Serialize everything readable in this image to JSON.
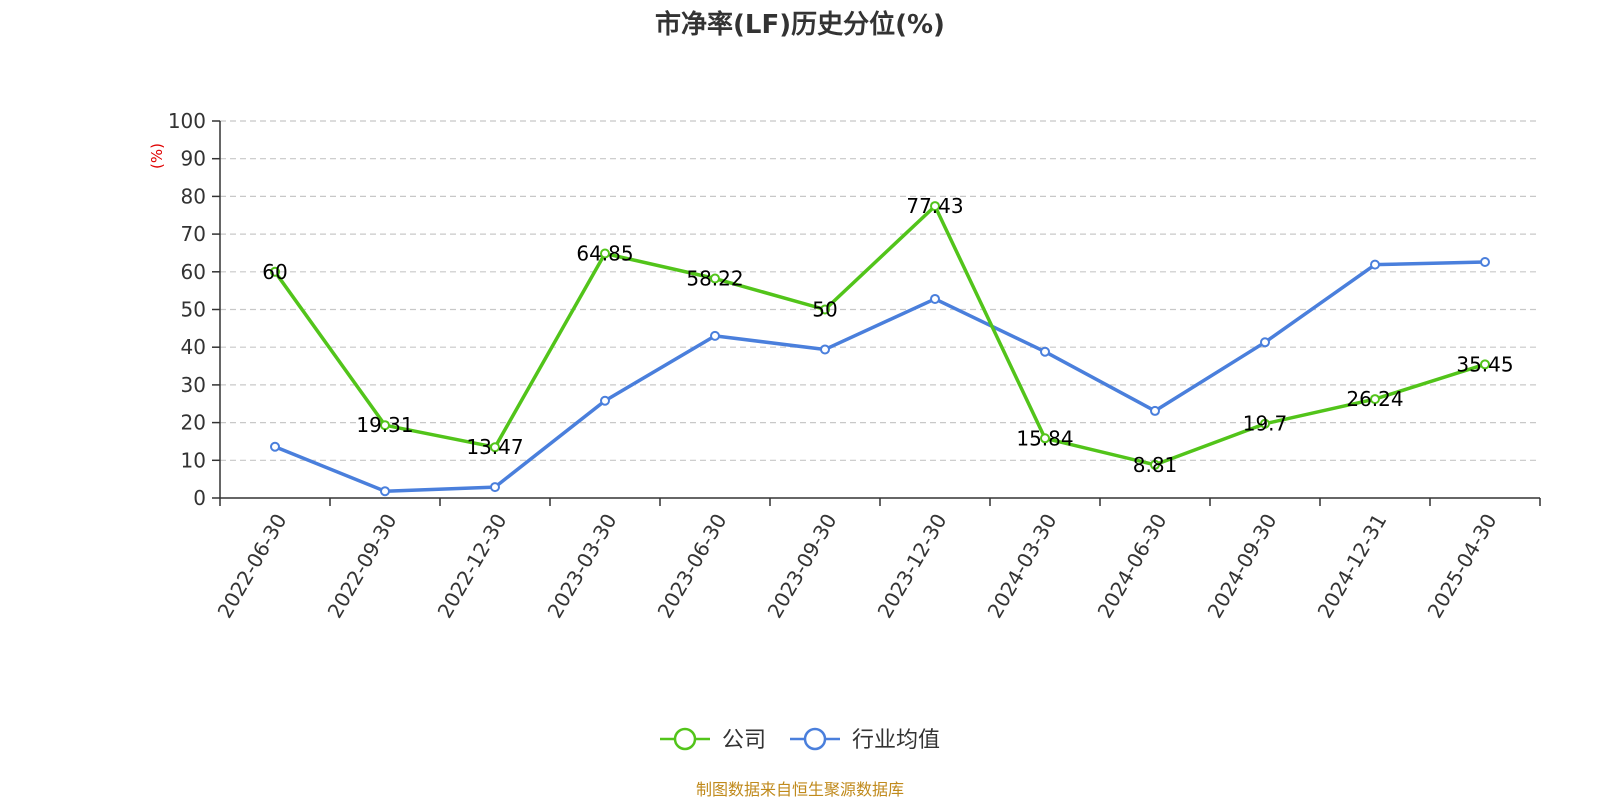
{
  "colors": {
    "company": "#52c41a",
    "industry": "#4a7fdc",
    "unit": "#e00000",
    "source": "#c08a1c",
    "grid": "#c8c8c8",
    "axis": "#333333"
  },
  "footer": {
    "source_text": "制图数据来自恒生聚源数据库"
  },
  "chart_data": {
    "type": "line",
    "title": "市净率(LF)历史分位(%)",
    "ylabel": "(%)",
    "xlabel": "",
    "ylim": [
      0,
      100
    ],
    "yticks": [
      0,
      10,
      20,
      30,
      40,
      50,
      60,
      70,
      80,
      90,
      100
    ],
    "grid": true,
    "legend_position": "bottom-center",
    "categories": [
      "2022-06-30",
      "2022-09-30",
      "2022-12-30",
      "2023-03-30",
      "2023-06-30",
      "2023-09-30",
      "2023-12-30",
      "2024-03-30",
      "2024-06-30",
      "2024-09-30",
      "2024-12-31",
      "2025-04-30"
    ],
    "series": [
      {
        "name": "公司",
        "values": [
          60,
          19.31,
          13.47,
          64.85,
          58.22,
          50,
          77.43,
          15.84,
          8.81,
          19.7,
          26.24,
          35.45
        ],
        "labels": [
          "60",
          "19.31",
          "13.47",
          "64.85",
          "58.22",
          "50",
          "77.43",
          "15.84",
          "8.81",
          "19.7",
          "26.24",
          "35.45"
        ]
      },
      {
        "name": "行业均值",
        "values": [
          13.6,
          1.8,
          2.9,
          25.8,
          43.0,
          39.4,
          52.8,
          38.8,
          23.1,
          41.3,
          61.9,
          62.6
        ]
      }
    ]
  }
}
